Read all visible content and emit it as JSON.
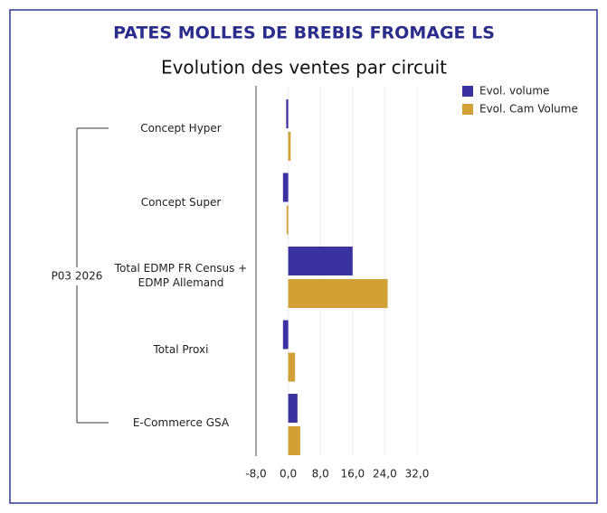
{
  "chart_data": {
    "type": "hbar",
    "title": "PATES MOLLES DE BREBIS FROMAGE LS",
    "subtitle": "Evolution des ventes par circuit",
    "group_label": "P03 2026",
    "categories": [
      "Concept Hyper",
      "Concept Super",
      "Total EDMP FR Census + EDMP Allemand",
      "Total Proxi",
      "E-Commerce GSA"
    ],
    "series": [
      {
        "name": "Evol. volume",
        "color": "#3a32a0",
        "values": [
          -0.5,
          -1.3,
          16.0,
          -1.3,
          2.3
        ]
      },
      {
        "name": "Evol. Cam Volume",
        "color": "#d2a034",
        "values": [
          0.6,
          -0.4,
          24.7,
          1.7,
          3.0
        ]
      }
    ],
    "xlim": [
      -8,
      32
    ],
    "xticks": [
      {
        "value": -8,
        "label": "-8,0"
      },
      {
        "value": 0,
        "label": "0,0"
      },
      {
        "value": 8,
        "label": "8,0"
      },
      {
        "value": 16,
        "label": "16,0"
      },
      {
        "value": 24,
        "label": "24,0"
      },
      {
        "value": 32,
        "label": "32,0"
      }
    ],
    "grid": true
  }
}
